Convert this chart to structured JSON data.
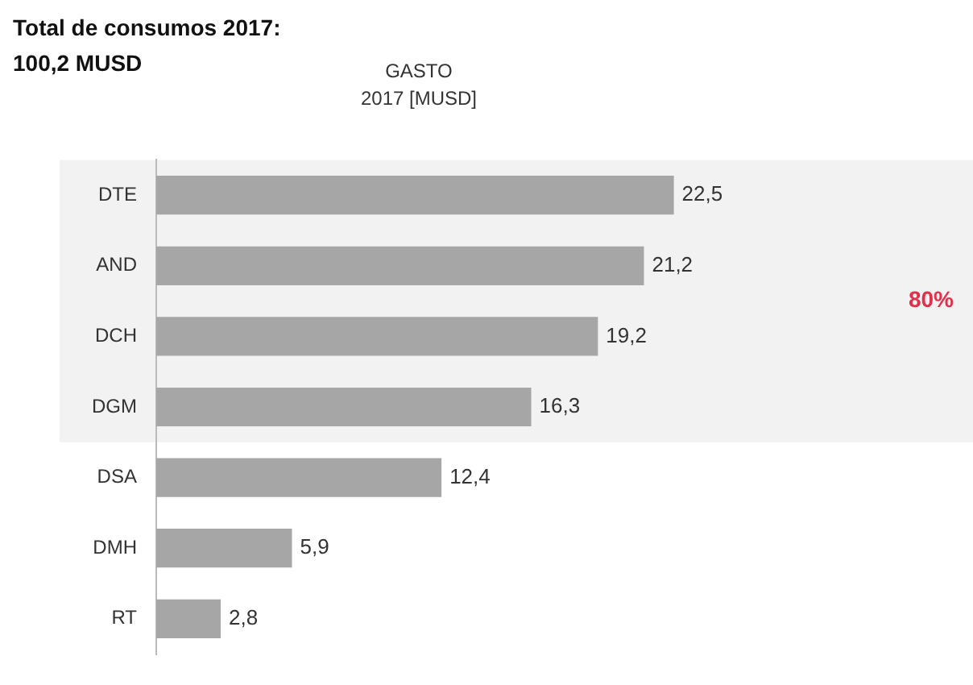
{
  "chart_data": {
    "type": "bar",
    "orientation": "horizontal",
    "title": "Total de consumos 2017:\n100,2 MUSD",
    "xlabel": "GASTO\n2017 [MUSD]",
    "categories": [
      "DTE",
      "AND",
      "DCH",
      "DGM",
      "DSA",
      "DMH",
      "RT"
    ],
    "values": [
      22.5,
      21.2,
      19.2,
      16.3,
      12.4,
      5.9,
      2.8
    ],
    "value_labels": [
      "22,5",
      "21,2",
      "19,2",
      "16,3",
      "12,4",
      "5,9",
      "2,8"
    ],
    "color": "#a6a6a6",
    "bands": [
      {
        "axis": "y",
        "from": "DTE",
        "to": "DGM",
        "label": "80%",
        "color": "#f2f2f2"
      }
    ],
    "grid": false,
    "legend": false
  }
}
